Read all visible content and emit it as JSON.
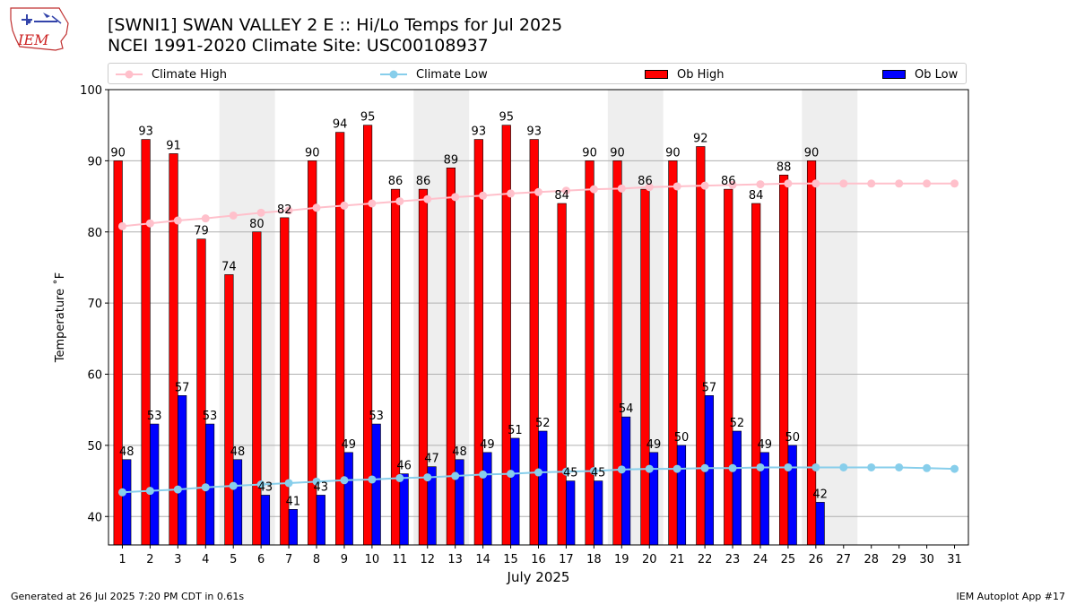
{
  "header": {
    "title_line1": "[SWNI1] SWAN VALLEY 2 E :: Hi/Lo Temps for Jul 2025",
    "title_line2": "NCEI 1991-2020 Climate Site: USC00108937"
  },
  "logo": {
    "text": "IEM"
  },
  "footer": {
    "left": "Generated at 26 Jul 2025 7:20 PM CDT in 0.61s",
    "right": "IEM Autoplot App #17"
  },
  "legend": {
    "climate_high": "Climate High",
    "climate_low": "Climate Low",
    "ob_high": "Ob High",
    "ob_low": "Ob Low"
  },
  "colors": {
    "ob_high": "#ff0000",
    "ob_low": "#0000ff",
    "climate_high": "#ffc0cb",
    "climate_low": "#87ceeb",
    "weekend_band": "#eeeeee"
  },
  "chart_data": {
    "type": "bar",
    "xlabel": "July 2025",
    "ylabel": "Temperature ˚F",
    "ylim": [
      36,
      100
    ],
    "yticks": [
      40,
      50,
      60,
      70,
      80,
      90,
      100
    ],
    "grid": "horizontal",
    "legend_position": "top",
    "categories": [
      "1",
      "2",
      "3",
      "4",
      "5",
      "6",
      "7",
      "8",
      "9",
      "10",
      "11",
      "12",
      "13",
      "14",
      "15",
      "16",
      "17",
      "18",
      "19",
      "20",
      "21",
      "22",
      "23",
      "24",
      "25",
      "26",
      "27",
      "28",
      "29",
      "30",
      "31"
    ],
    "weekend_bands": [
      [
        "5",
        "6"
      ],
      [
        "12",
        "13"
      ],
      [
        "19",
        "20"
      ],
      [
        "26",
        "27"
      ]
    ],
    "series": [
      {
        "name": "Ob High",
        "kind": "bar",
        "values": [
          90,
          93,
          91,
          79,
          74,
          80,
          82,
          90,
          94,
          95,
          86,
          86,
          89,
          93,
          95,
          93,
          84,
          90,
          90,
          86,
          90,
          92,
          86,
          84,
          88,
          90,
          null,
          null,
          null,
          null,
          null
        ]
      },
      {
        "name": "Ob Low",
        "kind": "bar",
        "values": [
          48,
          53,
          57,
          53,
          48,
          43,
          41,
          43,
          49,
          53,
          46,
          47,
          48,
          49,
          51,
          52,
          45,
          45,
          54,
          49,
          50,
          57,
          52,
          49,
          50,
          42,
          null,
          null,
          null,
          null,
          null
        ]
      },
      {
        "name": "Climate High",
        "kind": "line",
        "values": [
          80.8,
          81.2,
          81.6,
          81.9,
          82.3,
          82.7,
          83.0,
          83.4,
          83.7,
          84.0,
          84.3,
          84.6,
          84.9,
          85.1,
          85.4,
          85.6,
          85.8,
          86.0,
          86.1,
          86.3,
          86.4,
          86.5,
          86.6,
          86.7,
          86.8,
          86.8,
          86.8,
          86.8,
          86.8,
          86.8,
          86.8
        ]
      },
      {
        "name": "Climate Low",
        "kind": "line",
        "values": [
          43.4,
          43.6,
          43.8,
          44.1,
          44.3,
          44.5,
          44.7,
          44.9,
          45.1,
          45.2,
          45.4,
          45.5,
          45.7,
          45.9,
          46.0,
          46.2,
          46.3,
          46.4,
          46.6,
          46.7,
          46.7,
          46.8,
          46.8,
          46.9,
          46.9,
          46.9,
          46.9,
          46.9,
          46.9,
          46.8,
          46.7
        ]
      }
    ]
  }
}
